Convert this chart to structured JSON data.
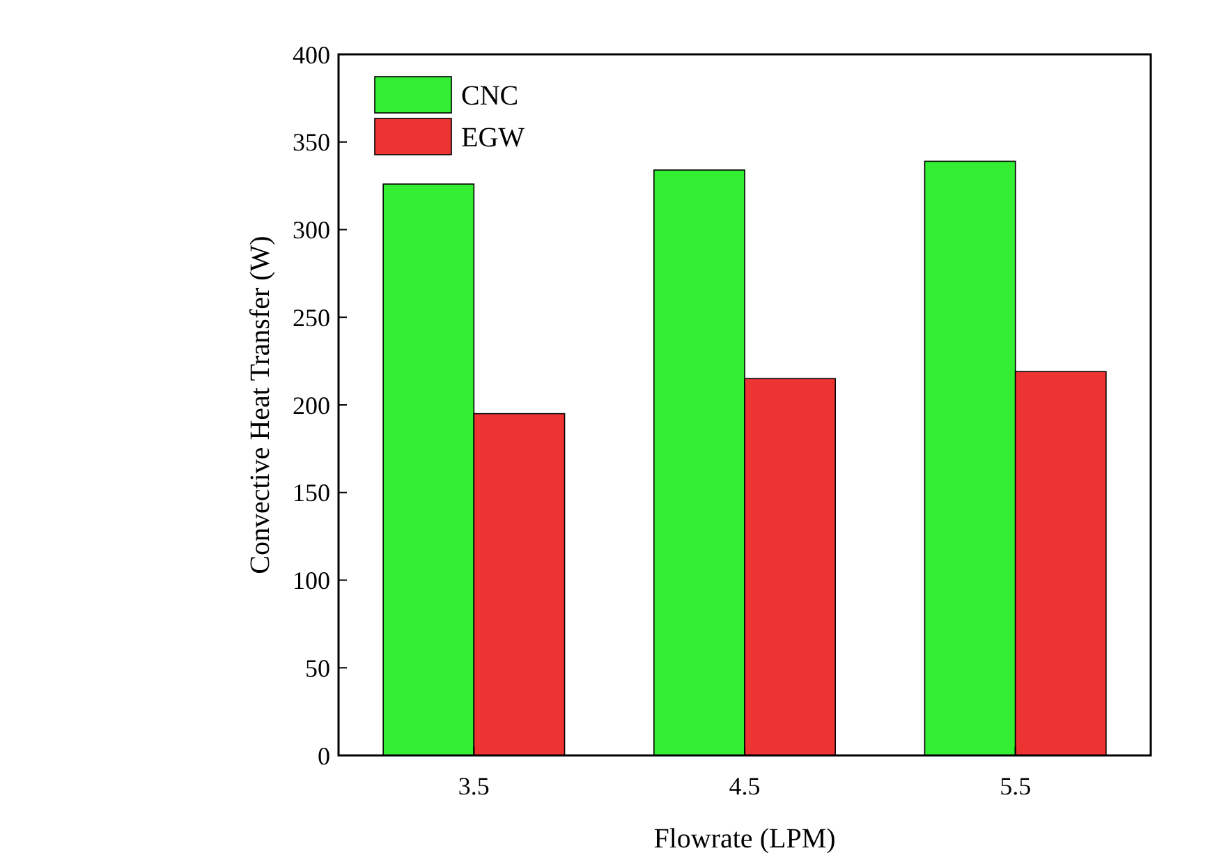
{
  "chart_data": {
    "type": "bar",
    "xlabel": "Flowrate (LPM)",
    "ylabel": "Convective Heat Transfer (W)",
    "categories": [
      "3.5",
      "4.5",
      "5.5"
    ],
    "series": [
      {
        "name": "CNC",
        "color": "#33ee33",
        "values": [
          326,
          334,
          339
        ]
      },
      {
        "name": "EGW",
        "color": "#ee3333",
        "values": [
          195,
          215,
          219
        ]
      }
    ],
    "ylim": [
      0,
      400
    ],
    "yticks": [
      0,
      50,
      100,
      150,
      200,
      250,
      300,
      350,
      400
    ],
    "legend": "top left",
    "grid": false
  }
}
